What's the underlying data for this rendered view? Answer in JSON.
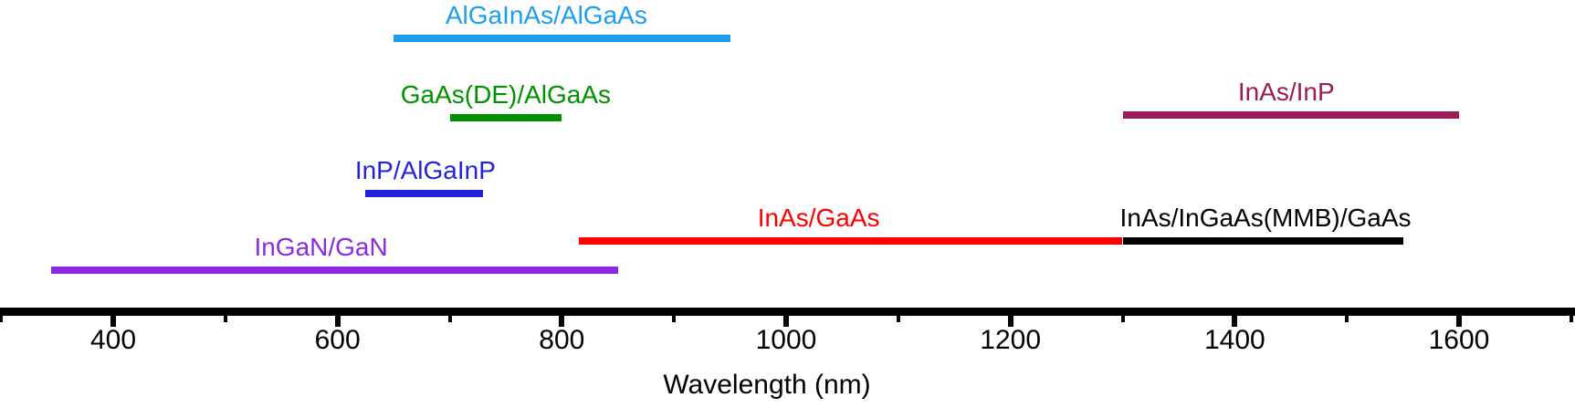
{
  "chart_data": {
    "type": "bar",
    "subtype": "horizontal-wavelength-ranges",
    "title": "",
    "xlabel": "Wavelength (nm)",
    "x_range_nm": [
      300,
      1700
    ],
    "x_major_ticks": [
      400,
      600,
      800,
      1000,
      1200,
      1400,
      1600
    ],
    "x_minor_ticks": [
      300,
      500,
      700,
      900,
      1100,
      1300,
      1500,
      1700
    ],
    "axis_color": "#000000",
    "grid": "off",
    "legend": "labels-above-bars",
    "series": [
      {
        "name": "AlGaInAs/AlGaAs",
        "wavelength_range_nm": [
          650,
          950
        ],
        "color": "#1B9EF0"
      },
      {
        "name": "GaAs(DE)/AlGaAs",
        "wavelength_range_nm": [
          700,
          800
        ],
        "color": "#009100"
      },
      {
        "name": "InAs/InP",
        "wavelength_range_nm": [
          1300,
          1600
        ],
        "color": "#9B1B5B"
      },
      {
        "name": "InP/AlGaInP",
        "wavelength_range_nm": [
          625,
          730
        ],
        "color": "#2222DD"
      },
      {
        "name": "InAs/GaAs",
        "wavelength_range_nm": [
          815,
          1300
        ],
        "color": "#FF0000"
      },
      {
        "name": "InAs/InGaAs(MMB)/GaAs",
        "wavelength_range_nm": [
          1300,
          1550
        ],
        "color": "#000000"
      },
      {
        "name": "InGaN/GaN",
        "wavelength_range_nm": [
          345,
          850
        ],
        "color": "#8A2BE2"
      }
    ]
  }
}
